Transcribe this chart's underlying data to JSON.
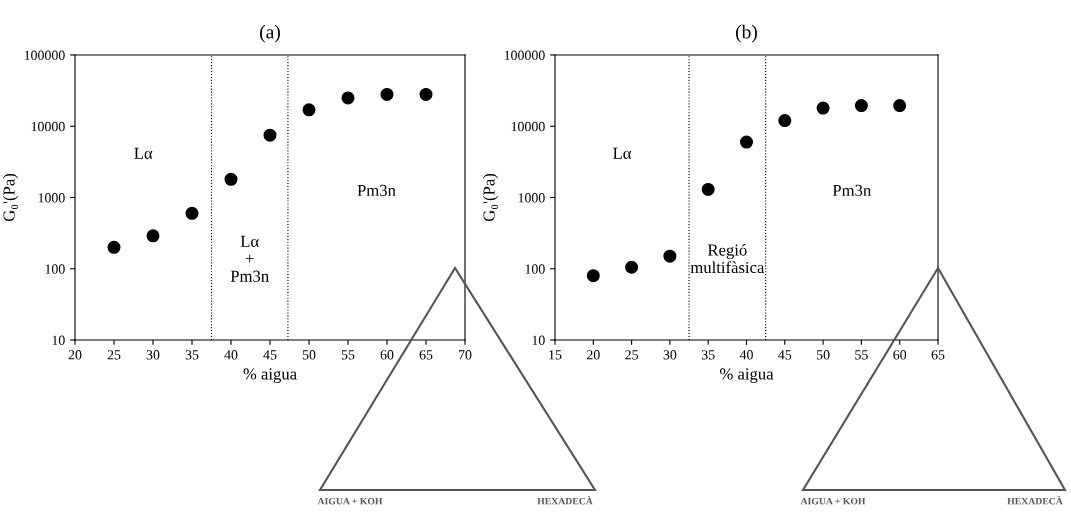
{
  "chart_data": [
    {
      "type": "scatter",
      "title": "(a)",
      "xlabel": "% aigua",
      "ylabel": "G₀'(Pa)",
      "log": "y",
      "grid": false,
      "legend": false,
      "marker": "circle",
      "x": [
        25,
        30,
        35,
        40,
        45,
        50,
        55,
        60,
        65
      ],
      "series": [
        {
          "color": "#000000",
          "values": [
            200,
            290,
            600,
            1800,
            7500,
            17000,
            25000,
            28000,
            28000
          ]
        }
      ],
      "xlim": [
        20,
        70
      ],
      "xticks": [
        20,
        25,
        30,
        35,
        40,
        45,
        50,
        55,
        60,
        65,
        70
      ],
      "ylim": [
        10,
        100000
      ],
      "yticks": [
        10,
        100,
        1000,
        10000,
        100000
      ],
      "ref_lines": [
        {
          "axis": "x",
          "value": 37.5,
          "color": "#000000",
          "line_style": "dotted"
        },
        {
          "axis": "x",
          "value": 47.3,
          "color": "#000000",
          "line_style": "dotted"
        }
      ],
      "annotations": [
        "Lα",
        "Lα\n+\nPm3n",
        "Pm3n",
        "AIGUA + KOH",
        "HEXADECÀ"
      ]
    },
    {
      "type": "scatter",
      "title": "(b)",
      "xlabel": "% aigua",
      "ylabel": "G₀'(Pa)",
      "log": "y",
      "grid": false,
      "legend": false,
      "marker": "circle",
      "x": [
        20,
        25,
        30,
        35,
        40,
        45,
        50,
        55,
        60
      ],
      "series": [
        {
          "color": "#000000",
          "values": [
            80,
            105,
            150,
            1300,
            6000,
            12000,
            18000,
            19500,
            19500
          ]
        }
      ],
      "xlim": [
        15,
        65
      ],
      "xticks": [
        15,
        20,
        25,
        30,
        35,
        40,
        45,
        50,
        55,
        60,
        65
      ],
      "ylim": [
        10,
        100000
      ],
      "yticks": [
        10,
        100,
        1000,
        10000,
        100000
      ],
      "ref_lines": [
        {
          "axis": "x",
          "value": 32.5,
          "color": "#000000",
          "line_style": "dotted"
        },
        {
          "axis": "x",
          "value": 42.5,
          "color": "#000000",
          "line_style": "dotted"
        }
      ],
      "annotations": [
        "Lα",
        "Regió\nmultifàsica",
        "Pm3n",
        "AIGUA + KOH",
        "HEXADECÀ"
      ]
    }
  ]
}
